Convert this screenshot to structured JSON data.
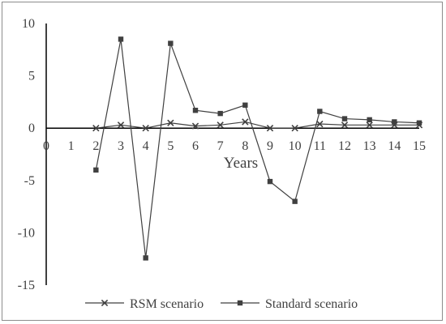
{
  "chart_data": {
    "type": "line",
    "title": "",
    "xlabel": "Years",
    "ylabel": "",
    "xlim": [
      0,
      15
    ],
    "ylim": [
      -15,
      10
    ],
    "x_ticks": [
      "0",
      "1",
      "2",
      "3",
      "4",
      "5",
      "6",
      "7",
      "8",
      "9",
      "10",
      "11",
      "12",
      "13",
      "14",
      "15"
    ],
    "y_ticks": [
      "10",
      "5",
      "0",
      "-5",
      "-10",
      "-15"
    ],
    "grid": false,
    "legend": "bottom",
    "series": [
      {
        "name": "RSM scenario",
        "marker": "x",
        "color": "#404040",
        "x": [
          2,
          3,
          4,
          5,
          6,
          7,
          8,
          9,
          10,
          11,
          12,
          13,
          14,
          15
        ],
        "y": [
          0.0,
          0.3,
          0.0,
          0.5,
          0.2,
          0.3,
          0.6,
          0.0,
          0.0,
          0.4,
          0.3,
          0.3,
          0.3,
          0.3
        ]
      },
      {
        "name": "Standard scenario",
        "marker": "square",
        "color": "#404040",
        "x": [
          2,
          3,
          4,
          5,
          6,
          7,
          8,
          9,
          10,
          11,
          12,
          13,
          14,
          15
        ],
        "y": [
          -4.0,
          8.5,
          -12.4,
          8.1,
          1.7,
          1.4,
          2.2,
          -5.1,
          -7.0,
          1.6,
          0.9,
          0.8,
          0.6,
          0.5
        ]
      }
    ]
  }
}
